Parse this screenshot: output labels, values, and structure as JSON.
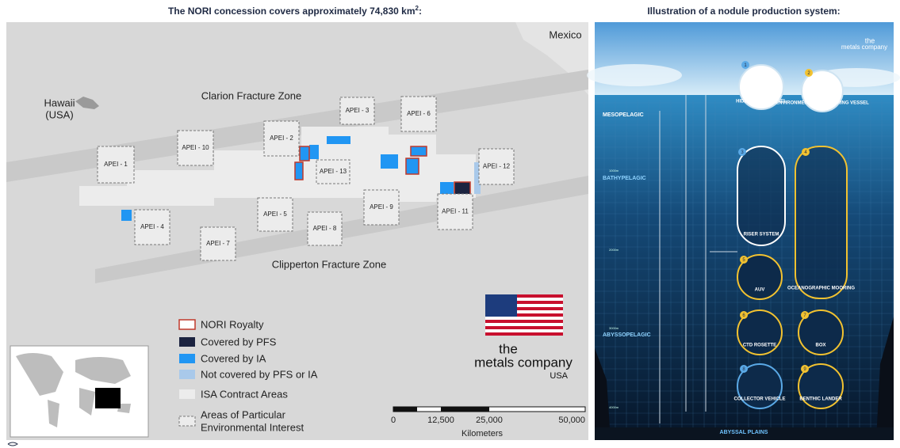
{
  "left": {
    "title": "The NORI concession covers approximately 74,830 km",
    "title_sup": "2",
    "title_end": ":",
    "places": [
      "Mexico",
      "Hawaii",
      "(USA)"
    ],
    "zones": [
      "Clarion Fracture Zone",
      "Clipperton Fracture Zone"
    ],
    "apei": [
      "APEI - 1",
      "APEI - 10",
      "APEI - 2",
      "APEI - 3",
      "APEI - 6",
      "APEI - 12",
      "APEI - 13",
      "APEI - 9",
      "APEI - 11",
      "APEI - 5",
      "APEI - 8",
      "APEI - 4",
      "APEI - 7"
    ],
    "legend": [
      "NORI Royalty",
      "Covered by PFS",
      "Covered by IA",
      "Not covered by PFS or IA",
      "ISA Contract Areas",
      "Areas of Particular",
      "Environmental Interest"
    ],
    "logo": [
      "the",
      "metals company",
      "USA"
    ],
    "scale_ticks": [
      "0",
      "12,500",
      "25,000",
      "50,000"
    ],
    "scale_unit": "Kilometers"
  },
  "right": {
    "title": "Illustration of a nodule production system:",
    "logo": [
      "the",
      "metals company"
    ],
    "zones": [
      "MESOPELAGIC",
      "BATHYPELAGIC",
      "ABYSSOPELAGIC",
      "ABYSSAL PLAINS"
    ],
    "depths": [
      "1000m",
      "2000m",
      "3000m",
      "4000m"
    ],
    "components": [
      {
        "n": "1",
        "label": "HIDDEN GEM VESSEL"
      },
      {
        "n": "2",
        "label": "ENVIRONMENTAL MONITORING VESSEL"
      },
      {
        "n": "3",
        "label": "RISER SYSTEM"
      },
      {
        "n": "4",
        "label": "OCEANOGRAPHIC MOORING"
      },
      {
        "n": "5",
        "label": "AUV"
      },
      {
        "n": "6",
        "label": "CTD ROSETTE"
      },
      {
        "n": "7",
        "label": "BOX"
      },
      {
        "n": "8",
        "label": "COLLECTOR VEHICLE"
      },
      {
        "n": "9",
        "label": "BENTHIC LANDER"
      }
    ]
  }
}
